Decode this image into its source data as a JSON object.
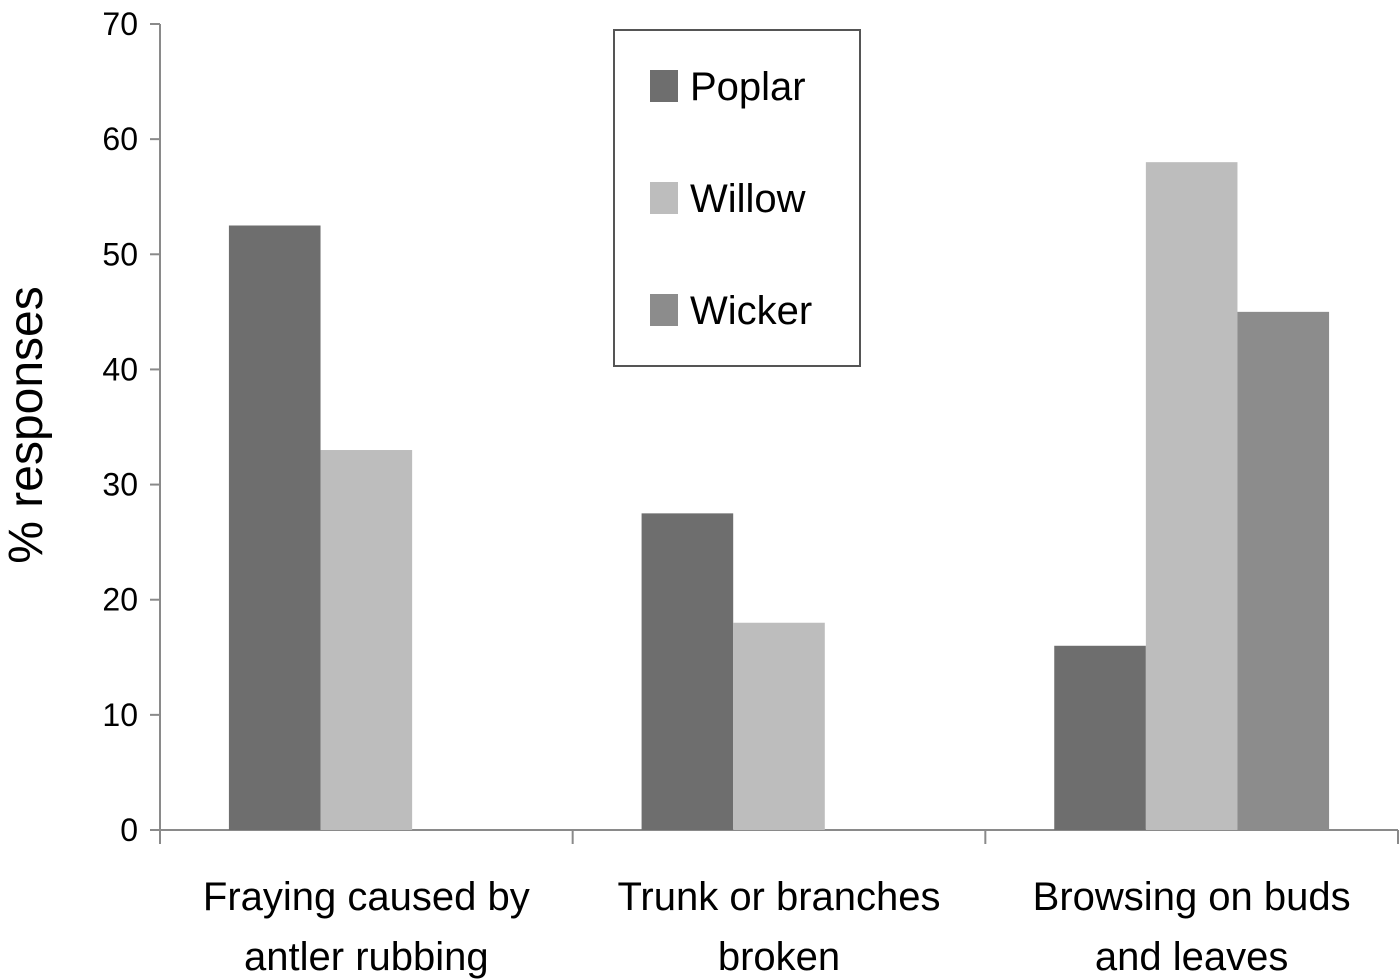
{
  "chart_data": {
    "type": "bar",
    "title": "",
    "xlabel": "",
    "ylabel": "% responses",
    "ylim": [
      0,
      70
    ],
    "yticks": [
      0,
      10,
      20,
      30,
      40,
      50,
      60,
      70
    ],
    "grid": false,
    "legend_position": "top-center",
    "categories": [
      [
        "Fraying caused by",
        "antler rubbing"
      ],
      [
        "Trunk or branches",
        "broken"
      ],
      [
        "Browsing on buds",
        "and leaves"
      ]
    ],
    "series": [
      {
        "name": "Poplar",
        "color": "#6e6e6e",
        "values": [
          52.5,
          27.5,
          16
        ]
      },
      {
        "name": "Willow",
        "color": "#bdbdbd",
        "values": [
          33,
          18,
          58
        ]
      },
      {
        "name": "Wicker",
        "color": "#8c8c8c",
        "values": [
          null,
          null,
          45
        ]
      }
    ]
  }
}
